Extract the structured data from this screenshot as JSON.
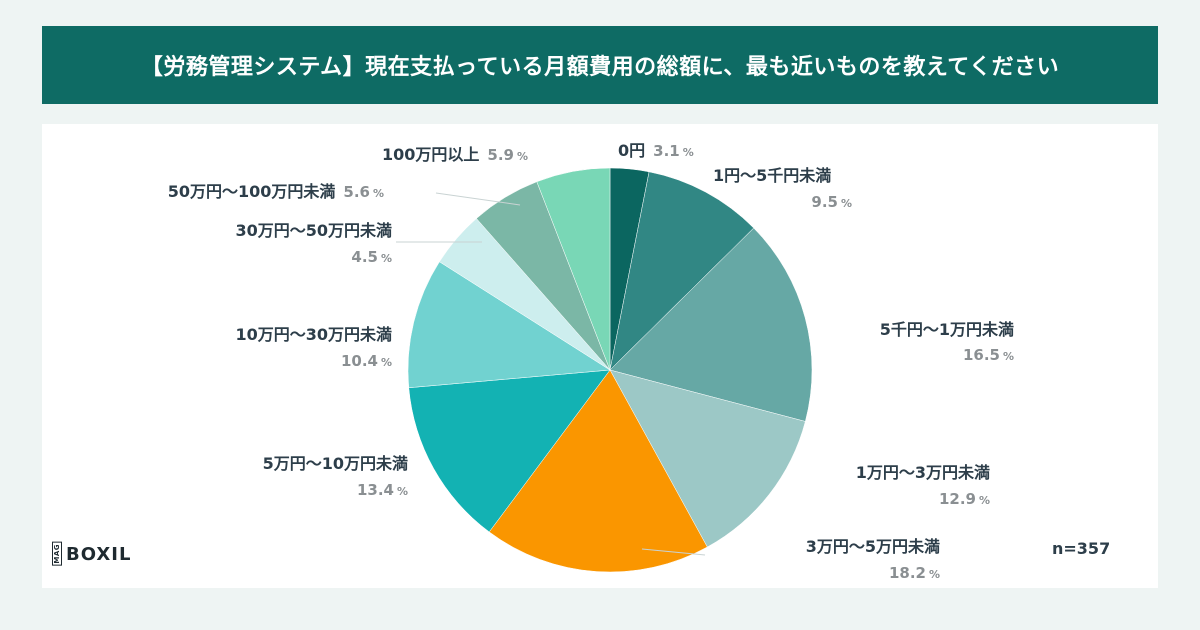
{
  "title": "【労務管理システム】現在支払っている月額費用の総額に、最も近いものを教えてください",
  "sample_size": "n=357",
  "logo": {
    "mag": "MAG",
    "brand": "BOXIL"
  },
  "chart_data": {
    "type": "pie",
    "title": "【労務管理システム】現在支払っている月額費用の総額に、最も近いものを教えてください",
    "unit": "%",
    "slices": [
      {
        "label": "0円",
        "value": 3.1,
        "value_text": "3.1",
        "color": "#0b6660"
      },
      {
        "label": "1円〜5千円未満",
        "value": 9.5,
        "value_text": "9.5",
        "color": "#318784"
      },
      {
        "label": "5千円〜1万円未満",
        "value": 16.5,
        "value_text": "16.5",
        "color": "#66a8a5"
      },
      {
        "label": "1万円〜3万円未満",
        "value": 12.9,
        "value_text": "12.9",
        "color": "#9cc8c6"
      },
      {
        "label": "3万円〜5万円未満",
        "value": 18.2,
        "value_text": "18.2",
        "color": "#fa9600"
      },
      {
        "label": "5万円〜10万円未満",
        "value": 13.4,
        "value_text": "13.4",
        "color": "#13b2b3"
      },
      {
        "label": "10万円〜30万円未満",
        "value": 10.4,
        "value_text": "10.4",
        "color": "#71d2d0"
      },
      {
        "label": "30万円〜50万円未満",
        "value": 4.5,
        "value_text": "4.5",
        "color": "#cdeeee"
      },
      {
        "label": "50万円〜100万円未満",
        "value": 5.6,
        "value_text": "5.6",
        "color": "#7bb7a6"
      },
      {
        "label": "100万円以上",
        "value": 5.9,
        "value_text": "5.9",
        "color": "#79d7b6"
      }
    ]
  }
}
